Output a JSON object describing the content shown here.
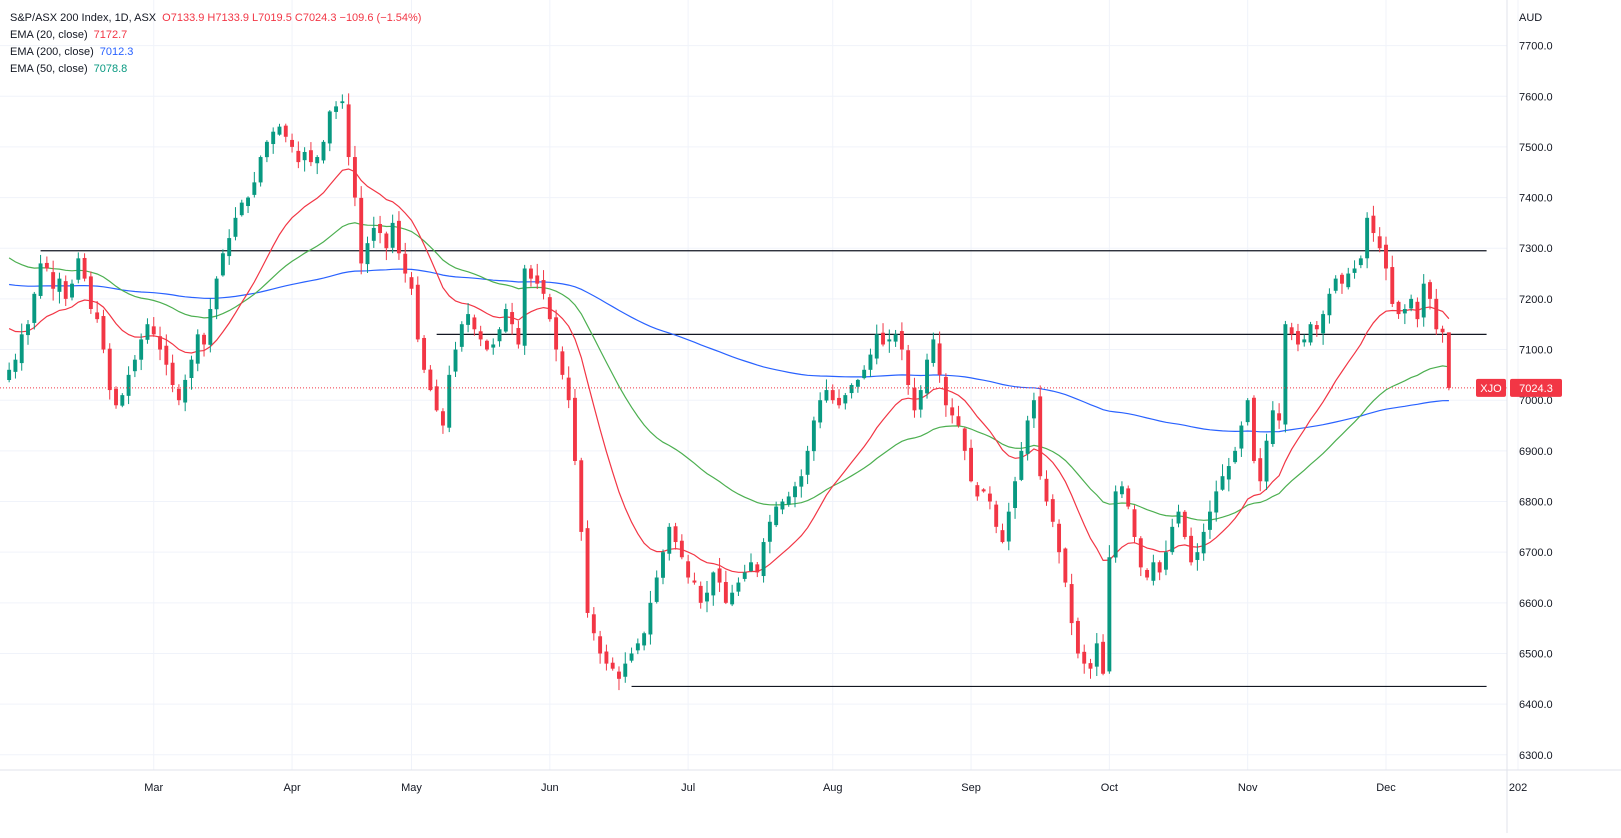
{
  "legend": {
    "symbol_line": "S&P/ASX 200 Index, 1D, ASX",
    "ohlc_line": "O7133.9 H7133.9 L7019.5 C7024.3 −109.6 (−1.54%)",
    "ema20_label": "EMA (20, close)",
    "ema20_value": "7172.7",
    "ema200_label": "EMA (200, close)",
    "ema200_value": "7012.3",
    "ema50_label": "EMA (50, close)",
    "ema50_value": "7078.8"
  },
  "colors": {
    "up": "#089981",
    "down": "#f23645",
    "ema20": "#f23645",
    "ema200": "#2962ff",
    "ema50": "#4caf50",
    "grid": "#f0f3fa",
    "level_line": "#131722",
    "price_tag_bg": "#f23645"
  },
  "chart_data": {
    "type": "candlestick",
    "currency": "AUD",
    "symbol_tag": "XJO",
    "last_price": "7024.3",
    "y_ticks": [
      "7700.0",
      "7600.0",
      "7500.0",
      "7400.0",
      "7300.0",
      "7200.0",
      "7100.0",
      "7000.0",
      "6900.0",
      "6800.0",
      "6700.0",
      "6600.0",
      "6500.0",
      "6400.0",
      "6300.0"
    ],
    "ylim": [
      6270,
      7790
    ],
    "x_ticks": [
      {
        "label": "Mar",
        "index": 23
      },
      {
        "label": "Apr",
        "index": 45
      },
      {
        "label": "May",
        "index": 64
      },
      {
        "label": "Jun",
        "index": 86
      },
      {
        "label": "Jul",
        "index": 108
      },
      {
        "label": "Aug",
        "index": 131
      },
      {
        "label": "Sep",
        "index": 153
      },
      {
        "label": "Oct",
        "index": 175
      },
      {
        "label": "Nov",
        "index": 197
      },
      {
        "label": "Dec",
        "index": 219
      },
      {
        "label": "202",
        "index": 240
      }
    ],
    "levels": [
      {
        "value": 7295,
        "from": 5,
        "to": 235
      },
      {
        "value": 7130,
        "from": 68,
        "to": 235
      },
      {
        "value": 6435,
        "from": 99,
        "to": 235
      }
    ],
    "close": [
      7060,
      7080,
      7130,
      7150,
      7210,
      7270,
      7260,
      7220,
      7240,
      7200,
      7230,
      7280,
      7240,
      7180,
      7160,
      7100,
      7020,
      6990,
      7010,
      7050,
      7080,
      7120,
      7150,
      7130,
      7100,
      7070,
      7030,
      7000,
      7040,
      7080,
      7130,
      7110,
      7180,
      7240,
      7290,
      7320,
      7360,
      7390,
      7400,
      7430,
      7480,
      7510,
      7530,
      7540,
      7520,
      7500,
      7470,
      7490,
      7470,
      7480,
      7510,
      7570,
      7580,
      7590,
      7480,
      7400,
      7270,
      7310,
      7340,
      7330,
      7300,
      7350,
      7290,
      7250,
      7220,
      7120,
      7060,
      7020,
      6980,
      6950,
      7050,
      7100,
      7150,
      7170,
      7140,
      7120,
      7100,
      7110,
      7140,
      7180,
      7150,
      7110,
      7260,
      7240,
      7230,
      7210,
      7160,
      7100,
      7050,
      7000,
      6880,
      6740,
      6580,
      6540,
      6500,
      6480,
      6470,
      6450,
      6480,
      6500,
      6520,
      6540,
      6600,
      6650,
      6700,
      6750,
      6720,
      6690,
      6650,
      6640,
      6600,
      6620,
      6660,
      6640,
      6600,
      6620,
      6640,
      6660,
      6680,
      6660,
      6720,
      6760,
      6790,
      6800,
      6810,
      6830,
      6850,
      6900,
      6960,
      7000,
      7020,
      7000,
      6990,
      7010,
      7030,
      7040,
      7060,
      7090,
      7130,
      7110,
      7120,
      7130,
      7100,
      7030,
      6980,
      7020,
      7080,
      7120,
      7050,
      6990,
      6970,
      6950,
      6900,
      6840,
      6810,
      6820,
      6800,
      6750,
      6720,
      6780,
      6840,
      6900,
      6960,
      7000,
      6850,
      6800,
      6760,
      6700,
      6640,
      6560,
      6500,
      6480,
      6470,
      6520,
      6460,
      6690,
      6820,
      6830,
      6790,
      6730,
      6670,
      6650,
      6680,
      6660,
      6700,
      6750,
      6780,
      6730,
      6680,
      6700,
      6740,
      6780,
      6820,
      6850,
      6870,
      6900,
      6950,
      7000,
      6880,
      6840,
      6920,
      6980,
      6960,
      7150,
      7130,
      7110,
      7120,
      7150,
      7140,
      7170,
      7210,
      7240,
      7230,
      7250,
      7260,
      7280,
      7360,
      7330,
      7300,
      7260,
      7190,
      7170,
      7180,
      7200,
      7160,
      7230,
      7200,
      7140,
      7134,
      7024
    ]
  }
}
